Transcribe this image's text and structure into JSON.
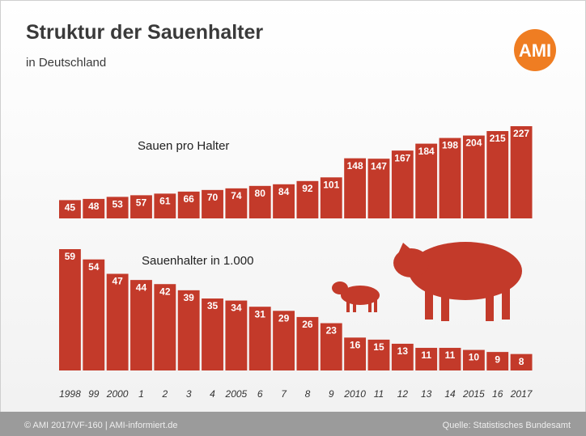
{
  "chart_data": {
    "type": "bar",
    "title": "Struktur der Sauenhalter",
    "subtitle": "in Deutschland",
    "categories": [
      "1998",
      "99",
      "2000",
      "1",
      "2",
      "3",
      "4",
      "2005",
      "6",
      "7",
      "8",
      "9",
      "2010",
      "11",
      "12",
      "13",
      "14",
      "2015",
      "16",
      "2017"
    ],
    "series": [
      {
        "name": "Sauen pro Halter",
        "color": "#c33a2a",
        "values": [
          45,
          48,
          53,
          57,
          61,
          66,
          70,
          74,
          80,
          84,
          92,
          101,
          148,
          147,
          167,
          184,
          198,
          204,
          215,
          227
        ]
      },
      {
        "name": "Sauenhalter in 1.000",
        "color": "#c33a2a",
        "values": [
          59,
          54,
          47,
          44,
          42,
          39,
          35,
          34,
          31,
          29,
          26,
          23,
          16,
          15,
          13,
          11,
          11,
          10,
          9,
          8
        ]
      }
    ]
  },
  "logo": "AMI",
  "footer": {
    "left": "© AMI 2017/VF-160 | AMI-informiert.de",
    "right": "Quelle: Statistisches Bundesamt"
  }
}
